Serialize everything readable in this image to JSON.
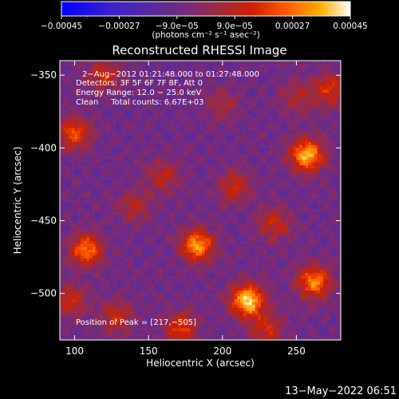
{
  "chart_data": {
    "type": "heatmap",
    "title": "Reconstructed RHESSI Image",
    "xlabel": "Heliocentric X (arcsec)",
    "ylabel": "Heliocentric Y (arcsec)",
    "xlim": [
      90,
      280
    ],
    "ylim": [
      -532,
      -340
    ],
    "x_ticks": [
      100,
      150,
      200,
      250
    ],
    "x_tick_labels": [
      "100",
      "150",
      "200",
      "250"
    ],
    "y_ticks": [
      -350,
      -400,
      -450,
      -500
    ],
    "y_tick_labels": [
      "−350",
      "−400",
      "−450",
      "−500"
    ],
    "colorbar": {
      "range": [
        -0.00045,
        0.00045
      ],
      "ticks": [
        -0.00045,
        -0.00027,
        -9e-05,
        9e-05,
        0.00027,
        0.00045
      ],
      "tick_labels": [
        "−0.00045",
        "−0.00027",
        "−9.0e−05",
        "9.0e−05",
        "0.00027",
        "0.00045"
      ],
      "unit_label": "(photons cm⁻² s⁻¹ asec⁻²)",
      "colormap": [
        "#0000ff",
        "#3a1fd0",
        "#5a2b96",
        "#7a2b76",
        "#a02a3a",
        "#d02000",
        "#ff5a00",
        "#ffb000",
        "#ffffff"
      ]
    },
    "annotations": [
      "2−Aug−2012 01:21:48.000 to 01:27:48.000",
      "Detectors: 3F 5F 6F 7F 8F, Att 0",
      "Energy Range: 12.0 − 25.0 keV",
      "Clean     Total counts: 6.67E+03",
      "Position of Peak = [217,−505]"
    ],
    "footer_timestamp": "13−May−2022 06:51",
    "features": [
      {
        "x": 217,
        "y": -505,
        "intensity": 1.0
      },
      {
        "x": 257,
        "y": -405,
        "intensity": 0.92
      },
      {
        "x": 183,
        "y": -467,
        "intensity": 0.82
      },
      {
        "x": 108,
        "y": -470,
        "intensity": 0.72
      },
      {
        "x": 100,
        "y": -390,
        "intensity": 0.6
      },
      {
        "x": 272,
        "y": -360,
        "intensity": 0.5
      },
      {
        "x": 262,
        "y": -492,
        "intensity": 0.78
      },
      {
        "x": 172,
        "y": -524,
        "intensity": 0.55
      },
      {
        "x": 128,
        "y": -516,
        "intensity": 0.42
      },
      {
        "x": 97,
        "y": -505,
        "intensity": 0.45
      },
      {
        "x": 208,
        "y": -427,
        "intensity": 0.45
      },
      {
        "x": 120,
        "y": -350,
        "intensity": 0.45
      },
      {
        "x": 160,
        "y": -420,
        "intensity": 0.38
      },
      {
        "x": 235,
        "y": -452,
        "intensity": 0.42
      },
      {
        "x": 140,
        "y": -440,
        "intensity": 0.35
      },
      {
        "x": 230,
        "y": -525,
        "intensity": 0.45
      },
      {
        "x": 250,
        "y": -365,
        "intensity": 0.32
      },
      {
        "x": 200,
        "y": -370,
        "intensity": 0.3
      }
    ]
  }
}
